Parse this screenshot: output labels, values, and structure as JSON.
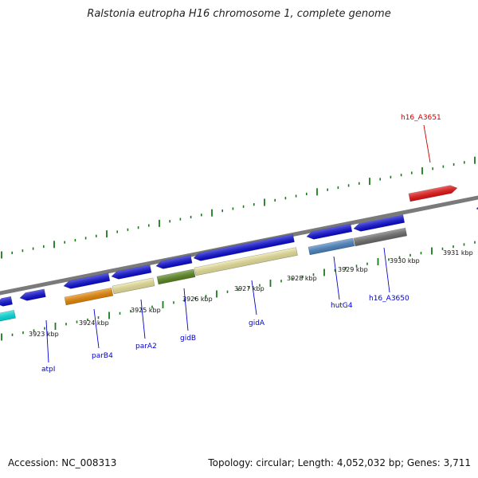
{
  "title": "Ralstonia eutropha H16 chromosome 1, complete genome",
  "accession": "Accession: NC_008313",
  "summary": "Topology: circular; Length: 4,052,032 bp; Genes: 3,711",
  "kbp_ticks": [
    "3923 kbp",
    "3924 kbp",
    "3925 kbp",
    "3926 kbp",
    "3927 kbp",
    "3928 kbp",
    "3929 kbp",
    "3930 kbp",
    "3931 kbp"
  ],
  "genes": [
    {
      "name": "atpI",
      "color": "#0000cc"
    },
    {
      "name": "parB4",
      "color": "#0000cc"
    },
    {
      "name": "parA2",
      "color": "#0000cc"
    },
    {
      "name": "gidB",
      "color": "#0000cc"
    },
    {
      "name": "gidA",
      "color": "#0000cc"
    },
    {
      "name": "hutG4",
      "color": "#0000cc"
    },
    {
      "name": "h16_A3650",
      "color": "#0000cc"
    },
    {
      "name": "h16_A3651",
      "color": "#cc0000"
    }
  ],
  "colors": {
    "backbone": "#7a7a7a",
    "tick": "#1a7a1a",
    "arrow_blue": "#0a0adc",
    "cyan": "#00e5e5",
    "orange": "#f08a00",
    "pale_yellow": "#f2eaa0",
    "olive": "#5b8a1e",
    "steel_blue": "#4a86c8",
    "grey": "#6e6e6e",
    "red": "#ee1111"
  }
}
